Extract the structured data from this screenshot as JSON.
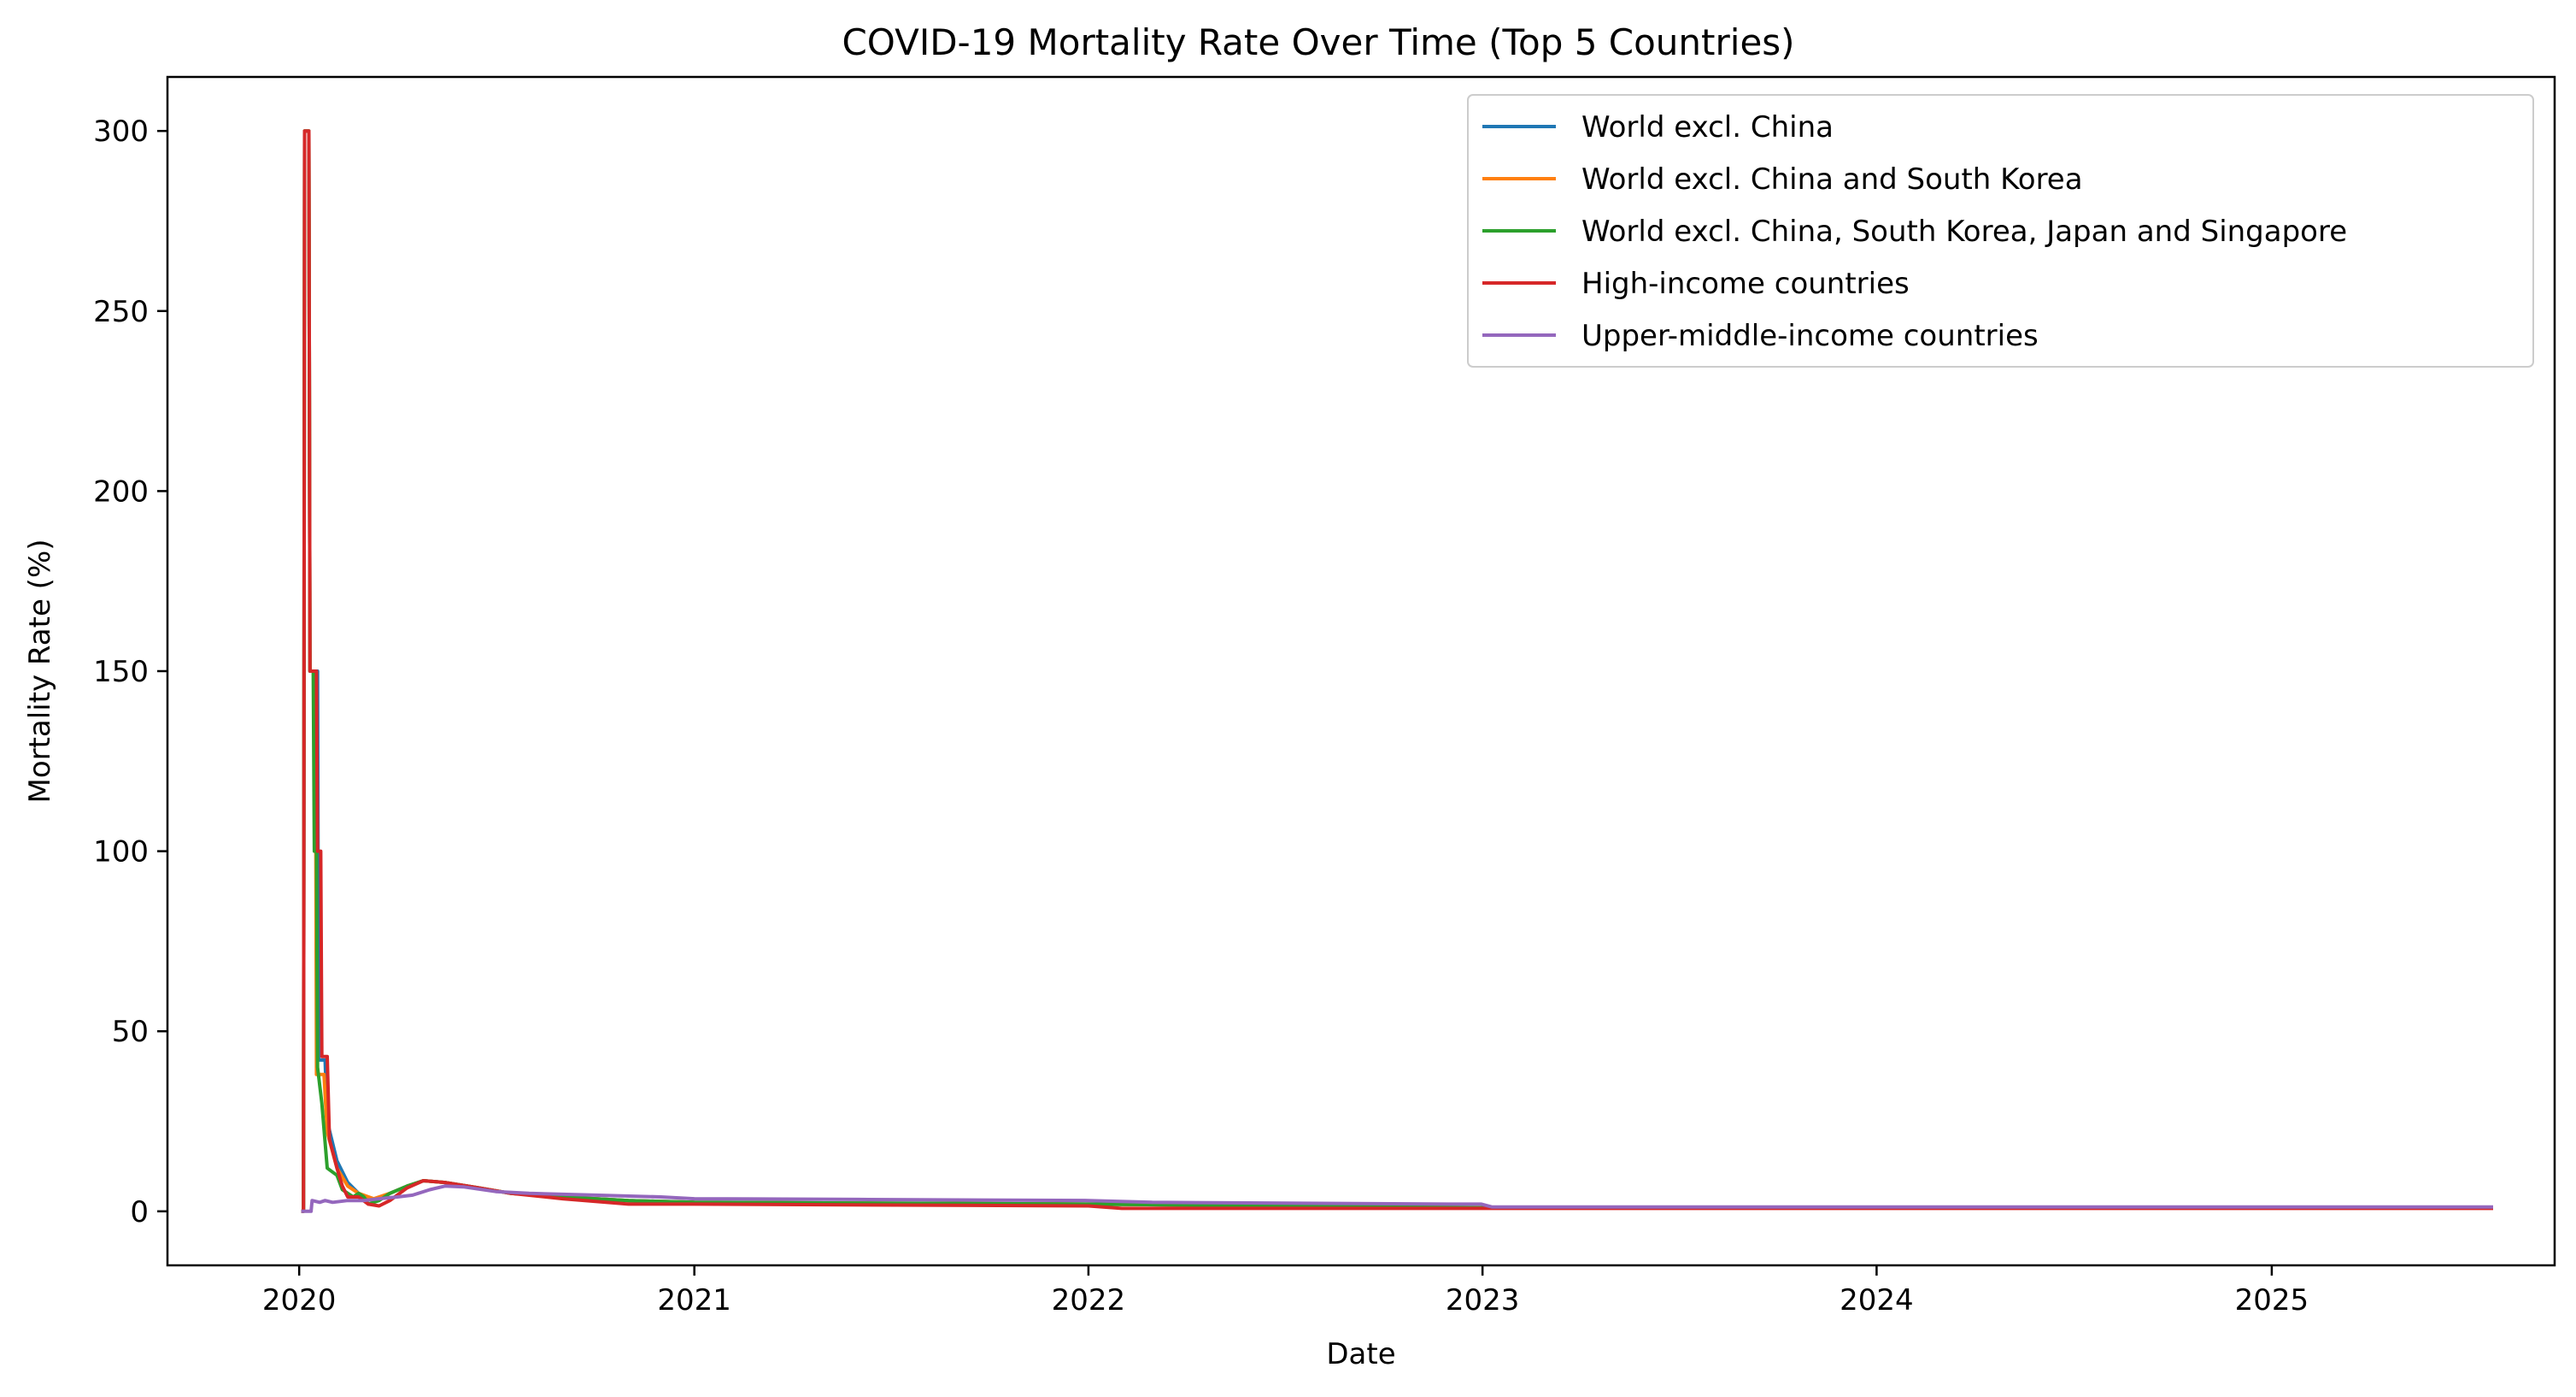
{
  "chart_data": {
    "type": "line",
    "title": "COVID-19 Mortality Rate Over Time (Top 5 Countries)",
    "xlabel": "Date",
    "ylabel": "Mortality Rate (%)",
    "xlim": [
      "2019-09-01",
      "2025-09-20"
    ],
    "ylim": [
      -15,
      315
    ],
    "x_ticks": [
      "2020",
      "2021",
      "2022",
      "2023",
      "2024",
      "2025"
    ],
    "y_ticks": [
      0,
      50,
      100,
      150,
      200,
      250,
      300
    ],
    "grid": false,
    "legend_position": "top-right",
    "series": [
      {
        "name": "World excl. China",
        "color": "#1f77b4",
        "points": [
          [
            "2020-01-03",
            0
          ],
          [
            "2020-01-05",
            0
          ],
          [
            "2020-01-06",
            300
          ],
          [
            "2020-01-10",
            300
          ],
          [
            "2020-01-11",
            150
          ],
          [
            "2020-01-18",
            150
          ],
          [
            "2020-01-19",
            42
          ],
          [
            "2020-01-25",
            42
          ],
          [
            "2020-01-27",
            25
          ],
          [
            "2020-02-05",
            14
          ],
          [
            "2020-02-15",
            8
          ],
          [
            "2020-02-25",
            5
          ],
          [
            "2020-03-10",
            3
          ],
          [
            "2020-03-25",
            5
          ],
          [
            "2020-04-10",
            7
          ],
          [
            "2020-04-25",
            8.5
          ],
          [
            "2020-05-15",
            8
          ],
          [
            "2020-06-15",
            6.5
          ],
          [
            "2020-07-15",
            5
          ],
          [
            "2020-09-01",
            4
          ],
          [
            "2020-11-01",
            3
          ],
          [
            "2021-01-01",
            2.5
          ],
          [
            "2022-01-01",
            2
          ],
          [
            "2023-01-01",
            1
          ],
          [
            "2025-07-25",
            1
          ]
        ]
      },
      {
        "name": "World excl. China and South Korea",
        "color": "#ff7f0e",
        "points": [
          [
            "2020-01-03",
            0
          ],
          [
            "2020-01-05",
            0
          ],
          [
            "2020-01-06",
            300
          ],
          [
            "2020-01-10",
            300
          ],
          [
            "2020-01-11",
            150
          ],
          [
            "2020-01-16",
            150
          ],
          [
            "2020-01-17",
            38
          ],
          [
            "2020-01-24",
            38
          ],
          [
            "2020-01-27",
            22
          ],
          [
            "2020-02-05",
            12
          ],
          [
            "2020-02-15",
            7
          ],
          [
            "2020-02-25",
            5
          ],
          [
            "2020-03-10",
            3.5
          ],
          [
            "2020-03-25",
            5
          ],
          [
            "2020-04-10",
            7
          ],
          [
            "2020-04-25",
            8.5
          ],
          [
            "2020-05-15",
            8
          ],
          [
            "2020-06-15",
            6.5
          ],
          [
            "2020-07-15",
            5
          ],
          [
            "2020-09-01",
            4
          ],
          [
            "2020-11-01",
            3
          ],
          [
            "2021-01-01",
            2.5
          ],
          [
            "2022-01-01",
            2
          ],
          [
            "2023-01-01",
            1
          ],
          [
            "2025-07-25",
            1
          ]
        ]
      },
      {
        "name": "World excl. China, South Korea, Japan and Singapore",
        "color": "#2ca02c",
        "points": [
          [
            "2020-01-03",
            0
          ],
          [
            "2020-01-05",
            0
          ],
          [
            "2020-01-06",
            300
          ],
          [
            "2020-01-10",
            300
          ],
          [
            "2020-01-11",
            150
          ],
          [
            "2020-01-14",
            150
          ],
          [
            "2020-01-15",
            100
          ],
          [
            "2020-01-17",
            100
          ],
          [
            "2020-01-18",
            40
          ],
          [
            "2020-01-22",
            30
          ],
          [
            "2020-01-27",
            12
          ],
          [
            "2020-02-05",
            10
          ],
          [
            "2020-02-10",
            6
          ],
          [
            "2020-02-20",
            4
          ],
          [
            "2020-02-25",
            5
          ],
          [
            "2020-03-01",
            4
          ],
          [
            "2020-03-05",
            2
          ],
          [
            "2020-03-15",
            3
          ],
          [
            "2020-03-25",
            5
          ],
          [
            "2020-04-10",
            7
          ],
          [
            "2020-04-25",
            8.5
          ],
          [
            "2020-05-15",
            8
          ],
          [
            "2020-06-15",
            6.5
          ],
          [
            "2020-07-15",
            5
          ],
          [
            "2020-09-01",
            4
          ],
          [
            "2020-11-01",
            3
          ],
          [
            "2021-01-01",
            2.5
          ],
          [
            "2022-01-01",
            2
          ],
          [
            "2023-01-01",
            1
          ],
          [
            "2025-07-25",
            1
          ]
        ]
      },
      {
        "name": "High-income countries",
        "color": "#d62728",
        "points": [
          [
            "2020-01-03",
            0
          ],
          [
            "2020-01-05",
            0
          ],
          [
            "2020-01-06",
            300
          ],
          [
            "2020-01-10",
            300
          ],
          [
            "2020-01-11",
            150
          ],
          [
            "2020-01-17",
            150
          ],
          [
            "2020-01-18",
            100
          ],
          [
            "2020-01-21",
            100
          ],
          [
            "2020-01-22",
            43
          ],
          [
            "2020-01-27",
            43
          ],
          [
            "2020-01-29",
            20
          ],
          [
            "2020-02-05",
            12
          ],
          [
            "2020-02-10",
            7
          ],
          [
            "2020-02-15",
            4
          ],
          [
            "2020-02-25",
            4
          ],
          [
            "2020-03-05",
            2
          ],
          [
            "2020-03-15",
            1.5
          ],
          [
            "2020-03-25",
            3
          ],
          [
            "2020-04-10",
            6.5
          ],
          [
            "2020-04-25",
            8.5
          ],
          [
            "2020-05-15",
            8
          ],
          [
            "2020-06-15",
            6.5
          ],
          [
            "2020-07-15",
            5
          ],
          [
            "2020-09-01",
            3.5
          ],
          [
            "2020-11-01",
            2
          ],
          [
            "2021-01-01",
            2
          ],
          [
            "2022-01-01",
            1.5
          ],
          [
            "2022-02-01",
            0.8
          ],
          [
            "2023-01-01",
            0.8
          ],
          [
            "2025-07-25",
            0.8
          ]
        ]
      },
      {
        "name": "Upper-middle-income countries",
        "color": "#9467bd",
        "points": [
          [
            "2020-01-03",
            0
          ],
          [
            "2020-01-12",
            0
          ],
          [
            "2020-01-13",
            3
          ],
          [
            "2020-01-20",
            2.5
          ],
          [
            "2020-01-25",
            3
          ],
          [
            "2020-02-01",
            2.5
          ],
          [
            "2020-02-15",
            3
          ],
          [
            "2020-03-01",
            3
          ],
          [
            "2020-03-15",
            3.5
          ],
          [
            "2020-04-01",
            4
          ],
          [
            "2020-04-15",
            4.5
          ],
          [
            "2020-05-01",
            6
          ],
          [
            "2020-05-15",
            7
          ],
          [
            "2020-06-01",
            6.8
          ],
          [
            "2020-07-01",
            5.5
          ],
          [
            "2020-08-01",
            5
          ],
          [
            "2020-10-01",
            4.5
          ],
          [
            "2020-12-01",
            4
          ],
          [
            "2021-01-01",
            3.5
          ],
          [
            "2021-06-01",
            3.3
          ],
          [
            "2022-01-01",
            3
          ],
          [
            "2022-03-01",
            2.5
          ],
          [
            "2022-12-01",
            2
          ],
          [
            "2022-12-31",
            2
          ],
          [
            "2023-01-10",
            1.2
          ],
          [
            "2025-07-25",
            1.2
          ]
        ]
      }
    ]
  }
}
